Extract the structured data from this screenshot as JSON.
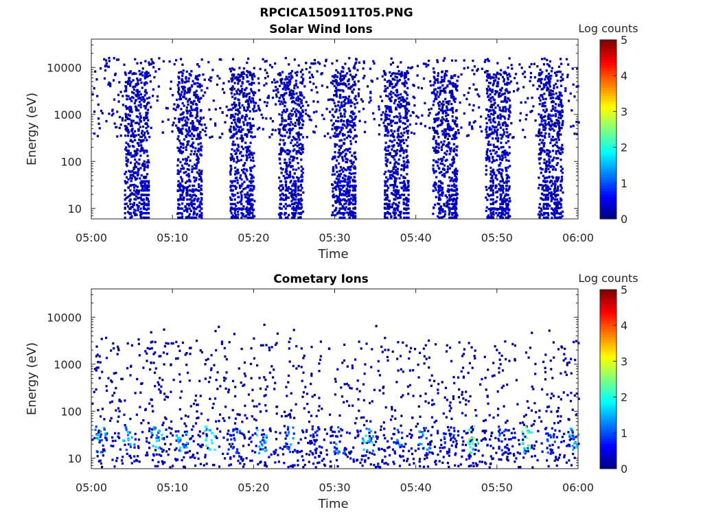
{
  "figure": {
    "title": "RPCICA150911T05.PNG"
  },
  "chart_data": [
    {
      "type": "heatmap",
      "title": "Solar Wind Ions",
      "xlabel": "Time",
      "ylabel": "Energy (eV)",
      "x_range": [
        "05:00",
        "06:00"
      ],
      "xticks": [
        "05:00",
        "05:10",
        "05:20",
        "05:30",
        "05:40",
        "05:50",
        "06:00"
      ],
      "y_scale": "log",
      "ylim": [
        6,
        40000
      ],
      "yticks": [
        {
          "value": 10,
          "label": "10"
        },
        {
          "value": 100,
          "label": "100"
        },
        {
          "value": 1000,
          "label": "1000"
        },
        {
          "value": 10000,
          "label": "10000"
        }
      ],
      "colorbar": {
        "label": "Log counts",
        "range": [
          0,
          5
        ],
        "ticks": [
          "0",
          "1",
          "2",
          "3",
          "4",
          "5"
        ],
        "colormap": "jet"
      },
      "bursts_minutes": [
        4.0,
        10.5,
        17.0,
        23.0,
        29.5,
        36.0,
        42.0,
        48.5,
        55.0
      ],
      "burst_width_minutes": 3.0,
      "burst_energy_range_eV": [
        6,
        8000
      ],
      "background_energy_range_eV": [
        300,
        30000
      ],
      "dominant_log_counts": [
        0.0,
        0.6
      ]
    },
    {
      "type": "heatmap",
      "title": "Cometary Ions",
      "xlabel": "Time",
      "ylabel": "Energy (eV)",
      "x_range": [
        "05:00",
        "06:00"
      ],
      "xticks": [
        "05:00",
        "05:10",
        "05:20",
        "05:30",
        "05:40",
        "05:50",
        "06:00"
      ],
      "y_scale": "log",
      "ylim": [
        6,
        40000
      ],
      "yticks": [
        {
          "value": 10,
          "label": "10"
        },
        {
          "value": 100,
          "label": "100"
        },
        {
          "value": 1000,
          "label": "1000"
        },
        {
          "value": 10000,
          "label": "10000"
        }
      ],
      "colorbar": {
        "label": "Log counts",
        "range": [
          0,
          5
        ],
        "ticks": [
          "0",
          "1",
          "2",
          "3",
          "4",
          "5"
        ],
        "colormap": "jet"
      },
      "core_energy_range_eV": [
        6,
        40
      ],
      "hot_spots": [
        {
          "minute": 1.0,
          "log_counts": 1.8
        },
        {
          "minute": 4.5,
          "log_counts": 1.9
        },
        {
          "minute": 8.0,
          "log_counts": 2.0
        },
        {
          "minute": 11.0,
          "log_counts": 1.8
        },
        {
          "minute": 14.5,
          "log_counts": 2.3
        },
        {
          "minute": 17.5,
          "log_counts": 1.2
        },
        {
          "minute": 21.0,
          "log_counts": 1.9
        },
        {
          "minute": 24.5,
          "log_counts": 1.6
        },
        {
          "minute": 27.5,
          "log_counts": 1.0
        },
        {
          "minute": 30.5,
          "log_counts": 1.5
        },
        {
          "minute": 34.0,
          "log_counts": 2.0
        },
        {
          "minute": 37.5,
          "log_counts": 1.4
        },
        {
          "minute": 41.0,
          "log_counts": 1.7
        },
        {
          "minute": 44.0,
          "log_counts": 1.1
        },
        {
          "minute": 47.0,
          "log_counts": 2.8
        },
        {
          "minute": 50.5,
          "log_counts": 1.3
        },
        {
          "minute": 53.5,
          "log_counts": 2.6
        },
        {
          "minute": 56.5,
          "log_counts": 1.2
        },
        {
          "minute": 59.5,
          "log_counts": 1.8
        }
      ],
      "scatter_energy_range_eV": [
        40,
        3000
      ]
    }
  ]
}
